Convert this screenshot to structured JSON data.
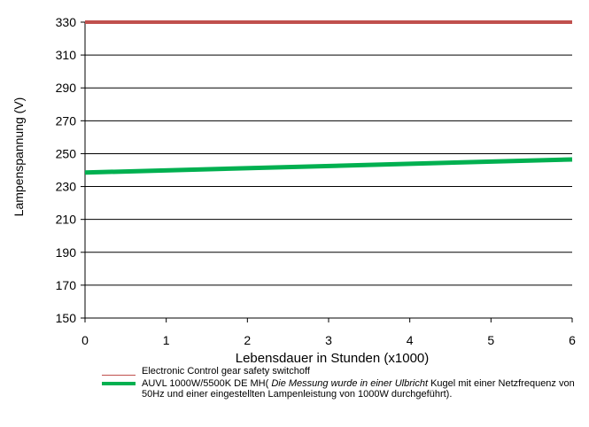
{
  "chart_data": {
    "type": "line",
    "xlabel": "Lebensdauer in Stunden (x1000)",
    "ylabel": "Lampenspannung (V)",
    "xlim": [
      0,
      6
    ],
    "ylim": [
      150,
      330
    ],
    "xticks": [
      "0",
      "1",
      "2",
      "3",
      "4",
      "5",
      "6"
    ],
    "yticks": [
      "150",
      "170",
      "190",
      "210",
      "230",
      "250",
      "270",
      "290",
      "310",
      "330"
    ],
    "grid": "horizontal",
    "legend_position": "bottom",
    "series": [
      {
        "name": "Electronic Control gear safety switchoff",
        "color": "#c0504d",
        "x": [
          0,
          6
        ],
        "y": [
          330,
          330
        ]
      },
      {
        "name": "AUVL 1000W/5500K DE MH",
        "color": "#00b050",
        "x": [
          0,
          6
        ],
        "y": [
          238.5,
          246.5
        ]
      }
    ],
    "legend": {
      "item1": "Electronic Control gear safety switchoff",
      "item2_main": "AUVL 1000W/5500K DE MH(",
      "item2_italic": "Die Messung wurde in einer Ulbricht",
      "item2_rest": "Kugel mit einer Netzfrequenz von 50Hz und einer eingestellten Lampenleistung von 1000W durchgeführt)."
    }
  }
}
